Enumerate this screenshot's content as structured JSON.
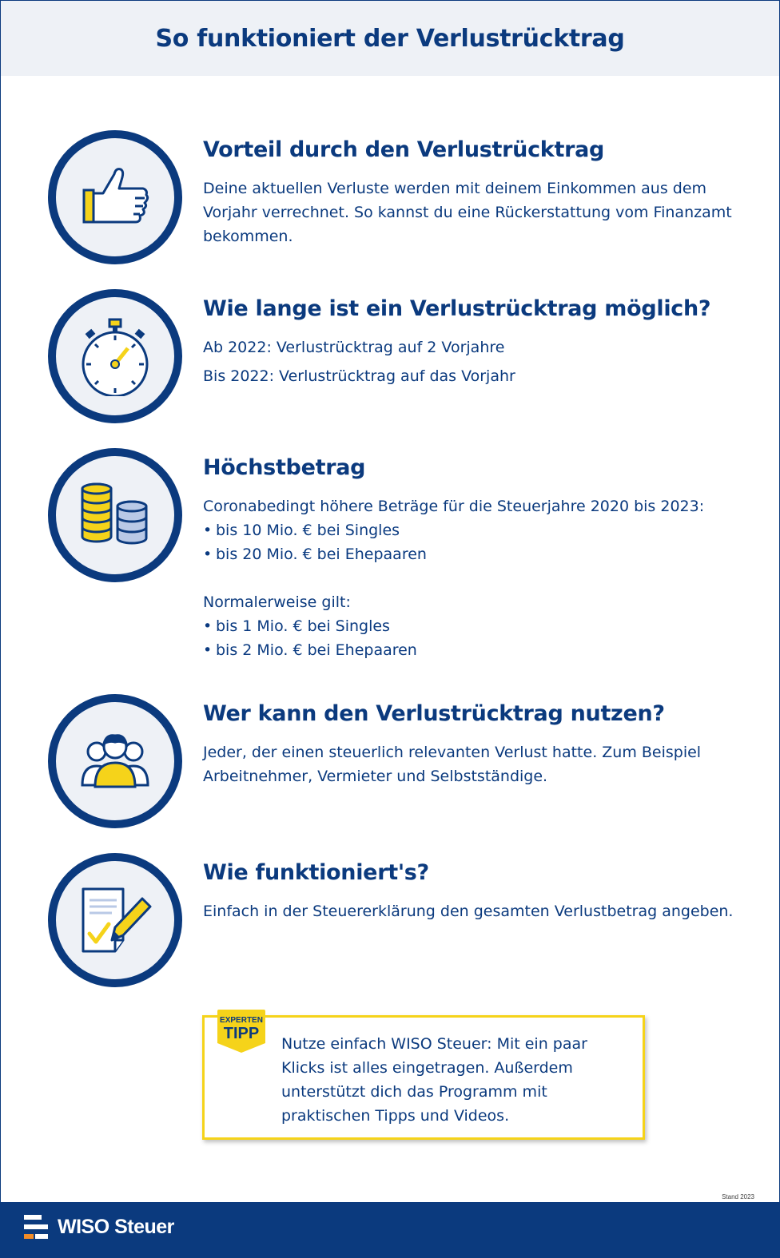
{
  "header": {
    "title": "So funktioniert der Verlustrücktrag"
  },
  "sections": [
    {
      "title": "Vorteil durch den Verlustrücktrag",
      "icon": "thumbs-up-icon",
      "body": "Deine aktuellen Verluste werden mit deinem Einkommen aus dem Vorjahr verrechnet. So kannst du eine Rückerstattung vom Finanzamt bekommen."
    },
    {
      "title": "Wie lange ist ein Verlustrücktrag möglich?",
      "icon": "stopwatch-icon",
      "line1": "Ab 2022: Verlustrücktrag auf 2 Vorjahre",
      "line2": "Bis 2022: Verlustrücktrag auf das Vorjahr"
    },
    {
      "title": "Höchstbetrag",
      "icon": "coins-icon",
      "intro": "Coronabedingt höhere Beträge für die Steuerjahre 2020 bis 2023:",
      "list1": [
        "bis 10 Mio. € bei Singles",
        "bis 20 Mio. € bei Ehepaaren"
      ],
      "normal": "Normalerweise gilt:",
      "list2": [
        "bis 1 Mio. € bei Singles",
        "bis 2 Mio. € bei Ehepaaren"
      ]
    },
    {
      "title": "Wer kann den Verlustrücktrag nutzen?",
      "icon": "people-icon",
      "body": "Jeder, der einen steuerlich relevanten Verlust hatte. Zum Beispiel Arbeitnehmer, Vermieter und Selbstständige."
    },
    {
      "title": "Wie funktioniert's?",
      "icon": "document-pen-icon",
      "body": "Einfach in der Steuererklärung den gesamten Verlustbetrag angeben."
    }
  ],
  "tip": {
    "badge_top": "EXPERTEN",
    "badge_bottom": "TIPP",
    "text": "Nutze einfach WISO Steuer: Mit ein paar Klicks ist alles eingetragen. Außerdem unterstützt dich das Programm mit praktischen Tipps und Videos."
  },
  "footer": {
    "brand": "WISO Steuer",
    "stand": "Stand 2023"
  },
  "colors": {
    "navy": "#0b3a7e",
    "yellow": "#f5d31a",
    "light": "#eef1f6"
  }
}
